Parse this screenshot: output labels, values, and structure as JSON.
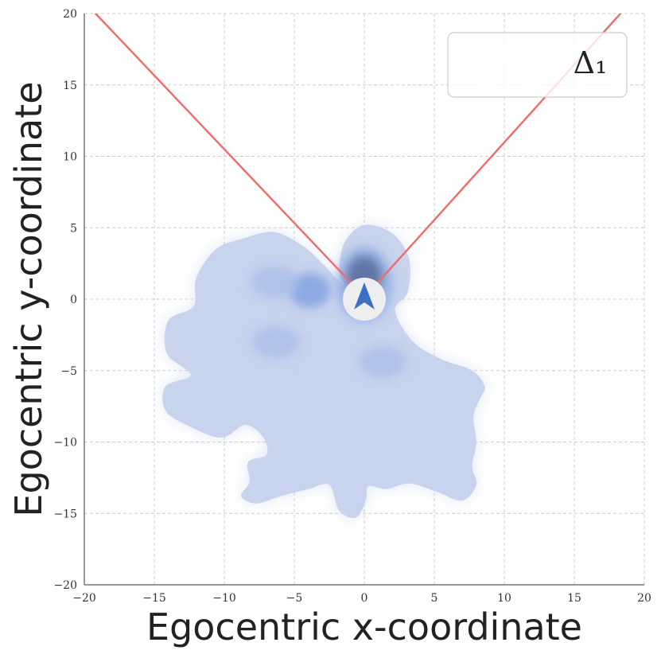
{
  "chart_data": {
    "type": "density",
    "title": "",
    "xlabel": "Egocentric x-coordinate",
    "ylabel": "Egocentric y-coordinate",
    "xlim": [
      -20,
      20
    ],
    "ylim": [
      -20,
      20
    ],
    "xticks": [
      -20,
      -15,
      -10,
      -5,
      0,
      5,
      10,
      15,
      20
    ],
    "yticks": [
      -20,
      -15,
      -10,
      -5,
      0,
      5,
      10,
      15,
      20
    ],
    "xtick_labels": [
      "−20",
      "−15",
      "−10",
      "−5",
      "0",
      "5",
      "10",
      "15",
      "20"
    ],
    "ytick_labels": [
      "−20",
      "−15",
      "−10",
      "−5",
      "0",
      "5",
      "10",
      "15",
      "20"
    ],
    "grid": true,
    "grid_style": "dashed",
    "legend": {
      "placement": "top-right",
      "entries": [
        "Δ₁"
      ]
    },
    "colors": {
      "density_base": "#c6d2ec",
      "density_mid": "#a9bde8",
      "density_high": "#7e9fe0",
      "density_peak": "#5a6ea0",
      "view_cone": "#f26b6b",
      "agent_marker": "#3d6fc7",
      "agent_disc": "#eeeeee",
      "grid": "#cccccc"
    },
    "view_cone": {
      "apex": [
        0,
        0
      ],
      "left_ray": [
        [
          -1,
          1.2
        ],
        [
          -19.2,
          20
        ]
      ],
      "right_ray": [
        [
          1,
          1.2
        ],
        [
          18.3,
          20
        ]
      ]
    },
    "agent": {
      "x": 0,
      "y": 0
    },
    "density_region": {
      "boundary": [
        [
          -1.5,
          1
        ],
        [
          -3,
          2.5
        ],
        [
          -4.5,
          3.8
        ],
        [
          -6.5,
          4.7
        ],
        [
          -8.8,
          4.2
        ],
        [
          -10.6,
          3.5
        ],
        [
          -12,
          1.5
        ],
        [
          -12.2,
          -0.5
        ],
        [
          -14,
          -1.5
        ],
        [
          -14.1,
          -3.8
        ],
        [
          -12.4,
          -5.3
        ],
        [
          -14.2,
          -6.1
        ],
        [
          -14.2,
          -7.8
        ],
        [
          -12.5,
          -8.9
        ],
        [
          -10.2,
          -9.7
        ],
        [
          -8.5,
          -8.8
        ],
        [
          -7.2,
          -9.7
        ],
        [
          -7.0,
          -10.9
        ],
        [
          -8.3,
          -11.4
        ],
        [
          -8.2,
          -12.8
        ],
        [
          -8.8,
          -13.8
        ],
        [
          -7.7,
          -14.3
        ],
        [
          -6.0,
          -13.8
        ],
        [
          -4.0,
          -13.3
        ],
        [
          -2.5,
          -13.0
        ],
        [
          -1.8,
          -14.8
        ],
        [
          -0.6,
          -15.3
        ],
        [
          0.1,
          -14.1
        ],
        [
          0.3,
          -13.1
        ],
        [
          1.6,
          -13.3
        ],
        [
          3.2,
          -12.9
        ],
        [
          5.2,
          -13.5
        ],
        [
          7.0,
          -14.1
        ],
        [
          8.0,
          -13.0
        ],
        [
          7.7,
          -11.7
        ],
        [
          8.0,
          -10.1
        ],
        [
          7.8,
          -8.2
        ],
        [
          8.3,
          -6.9
        ],
        [
          8.6,
          -6.1
        ],
        [
          7.7,
          -5.0
        ],
        [
          5.5,
          -4.2
        ],
        [
          3.5,
          -3.0
        ],
        [
          2.2,
          -0.8
        ],
        [
          3.1,
          0.5
        ],
        [
          3.2,
          2.8
        ],
        [
          2.0,
          4.6
        ],
        [
          0,
          5.2
        ],
        [
          -1.4,
          4.0
        ],
        [
          -1.8,
          2.0
        ]
      ],
      "hotspots": [
        {
          "x": -3.9,
          "y": 0.6,
          "level": "high"
        },
        {
          "x": -6.4,
          "y": 1.2,
          "level": "mid"
        },
        {
          "x": -6.3,
          "y": -3.0,
          "level": "mid"
        },
        {
          "x": 1.3,
          "y": -4.4,
          "level": "mid"
        },
        {
          "x": 0,
          "y": 1.6,
          "level": "peak"
        }
      ]
    }
  }
}
